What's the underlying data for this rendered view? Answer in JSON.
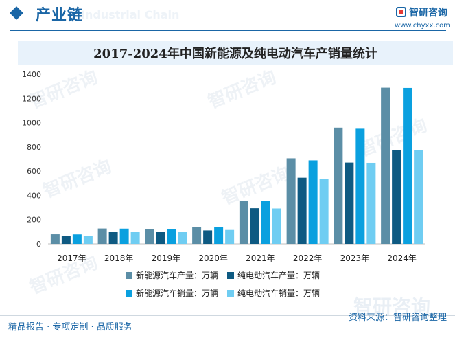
{
  "header": {
    "title": "产业链",
    "ghost_text": "Industrial Chain",
    "brand_name": "智研咨询",
    "brand_url": "www.chyxx.com",
    "accent_color": "#1a66a6"
  },
  "watermark_text": "智研咨询",
  "chart_data": {
    "type": "bar",
    "title": "2017-2024年中国新能源及纯电动汽车产销量统计",
    "xlabel": "",
    "ylabel": "",
    "ylim": [
      0,
      1400
    ],
    "yticks": [
      0,
      200,
      400,
      600,
      800,
      1000,
      1200,
      1400
    ],
    "grid": false,
    "legend_position": "bottom",
    "categories": [
      "2017年",
      "2018年",
      "2019年",
      "2020年",
      "2021年",
      "2022年",
      "2023年",
      "2024年"
    ],
    "series": [
      {
        "name": "新能源汽车产量：万辆",
        "color": "#5b8ea6",
        "values": [
          79,
          127,
          124,
          137,
          355,
          706,
          959,
          1289
        ]
      },
      {
        "name": "纯电动汽车产量：万辆",
        "color": "#0e5a82",
        "values": [
          67,
          99,
          102,
          111,
          294,
          546,
          671,
          776
        ]
      },
      {
        "name": "新能源汽车销量：万辆",
        "color": "#0aa0df",
        "values": [
          78,
          126,
          121,
          137,
          352,
          689,
          950,
          1287
        ]
      },
      {
        "name": "纯电动汽车销量：万辆",
        "color": "#6fcdf2",
        "values": [
          65,
          98,
          97,
          115,
          292,
          537,
          669,
          771
        ]
      }
    ]
  },
  "footer": {
    "left_text": "精品报告 · 专项定制 · 品质服务",
    "right_text": "资料来源：智研咨询整理",
    "ghost_text": "智研咨询"
  }
}
